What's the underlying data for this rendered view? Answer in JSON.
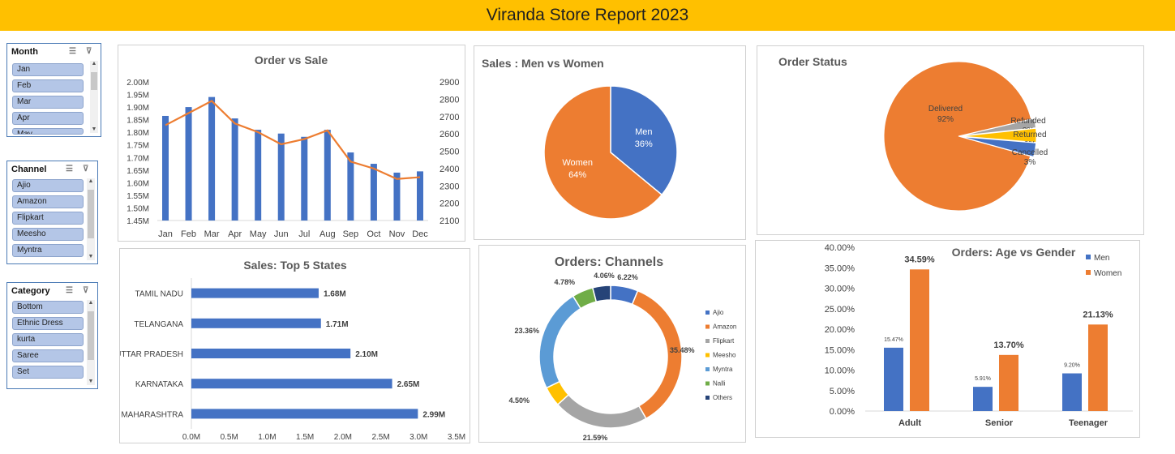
{
  "report_title": "Viranda Store Report 2023",
  "colors": {
    "blue": "#4472c4",
    "orange": "#ed7d31",
    "gray": "#a5a5a5",
    "yellow": "#ffc000",
    "lightblue": "#5b9bd5",
    "green": "#70ad47",
    "navy": "#264478",
    "banner": "#ffc000"
  },
  "slicers": {
    "month": {
      "title": "Month",
      "items": [
        "Jan",
        "Feb",
        "Mar",
        "Apr",
        "May"
      ]
    },
    "channel": {
      "title": "Channel",
      "items": [
        "Ajio",
        "Amazon",
        "Flipkart",
        "Meesho",
        "Myntra"
      ]
    },
    "category": {
      "title": "Category",
      "items": [
        "Bottom",
        "Ethnic Dress",
        "kurta",
        "Saree",
        "Set"
      ]
    }
  },
  "chart_data": [
    {
      "id": "order-vs-sale",
      "type": "bar",
      "title": "Order vs Sale",
      "categories": [
        "Jan",
        "Feb",
        "Mar",
        "Apr",
        "May",
        "Jun",
        "Jul",
        "Aug",
        "Sep",
        "Oct",
        "Nov",
        "Dec"
      ],
      "series": [
        {
          "values": [
            1.865,
            1.9,
            1.94,
            1.855,
            1.81,
            1.795,
            1.782,
            1.81,
            1.72,
            1.675,
            1.64,
            1.645
          ]
        },
        {
          "type": "line",
          "axis": "secondary",
          "values": [
            2650,
            2720,
            2790,
            2660,
            2610,
            2540,
            2570,
            2620,
            2440,
            2400,
            2340,
            2350
          ]
        }
      ],
      "ylim": [
        1.45,
        2.0
      ],
      "y_ticks": [
        "1.45M",
        "1.50M",
        "1.55M",
        "1.60M",
        "1.65M",
        "1.70M",
        "1.75M",
        "1.80M",
        "1.85M",
        "1.90M",
        "1.95M",
        "2.00M"
      ],
      "y2lim": [
        2100,
        2900
      ],
      "y2_ticks": [
        "2100",
        "2200",
        "2300",
        "2400",
        "2500",
        "2600",
        "2700",
        "2800",
        "2900"
      ]
    },
    {
      "id": "sales-men-women",
      "type": "pie",
      "title": "Sales : Men vs Women",
      "slices": [
        {
          "name": "Men",
          "value": 36,
          "label": "36%",
          "color": "#4472c4"
        },
        {
          "name": "Women",
          "value": 64,
          "label": "64%",
          "color": "#ed7d31"
        }
      ]
    },
    {
      "id": "order-status",
      "type": "pie",
      "title": "Order Status",
      "slices": [
        {
          "name": "Delivered",
          "value": 92,
          "label": "92%",
          "color": "#ed7d31"
        },
        {
          "name": "Refunded",
          "value": 2,
          "label": "2%",
          "color": "#a5a5a5"
        },
        {
          "name": "Returned",
          "value": 3,
          "label": "3%",
          "color": "#ffc000"
        },
        {
          "name": "Cancelled",
          "value": 3,
          "label": "3%",
          "color": "#4472c4"
        }
      ]
    },
    {
      "id": "top-states",
      "type": "bar",
      "orientation": "horizontal",
      "title": "Sales: Top 5 States",
      "categories": [
        "TAMIL NADU",
        "TELANGANA",
        "UTTAR PRADESH",
        "KARNATAKA",
        "MAHARASHTRA"
      ],
      "values": [
        1.68,
        1.71,
        2.1,
        2.65,
        2.99
      ],
      "data_labels": [
        "1.68M",
        "1.71M",
        "2.10M",
        "2.65M",
        "2.99M"
      ],
      "xlim": [
        0,
        3.5
      ],
      "x_ticks": [
        "0.0M",
        "0.5M",
        "1.0M",
        "1.5M",
        "2.0M",
        "2.5M",
        "3.0M",
        "3.5M"
      ]
    },
    {
      "id": "orders-channels",
      "type": "pie",
      "variant": "doughnut",
      "title": "Orders: Channels",
      "slices": [
        {
          "name": "Ajio",
          "value": 6.22,
          "label": "6.22%",
          "color": "#4472c4"
        },
        {
          "name": "Amazon",
          "value": 35.48,
          "label": "35.48%",
          "color": "#ed7d31"
        },
        {
          "name": "Flipkart",
          "value": 21.59,
          "label": "21.59%",
          "color": "#a5a5a5"
        },
        {
          "name": "Meesho",
          "value": 4.5,
          "label": "4.50%",
          "color": "#ffc000"
        },
        {
          "name": "Myntra",
          "value": 23.36,
          "label": "23.36%",
          "color": "#5b9bd5"
        },
        {
          "name": "Nalli",
          "value": 4.78,
          "label": "4.78%",
          "color": "#70ad47"
        },
        {
          "name": "Others",
          "value": 4.06,
          "label": "4.06%",
          "color": "#264478"
        }
      ],
      "legend": "right"
    },
    {
      "id": "age-vs-gender",
      "type": "bar",
      "title": "Orders: Age vs Gender",
      "categories": [
        "Adult",
        "Senior",
        "Teenager"
      ],
      "series": [
        {
          "name": "Men",
          "values": [
            15.47,
            5.91,
            9.2
          ],
          "labels": [
            "15.47%",
            "5.91%",
            "9.20%"
          ],
          "color": "#4472c4"
        },
        {
          "name": "Women",
          "values": [
            34.59,
            13.7,
            21.13
          ],
          "labels": [
            "34.59%",
            "13.70%",
            "21.13%"
          ],
          "color": "#ed7d31"
        }
      ],
      "ylim": [
        0,
        40
      ],
      "y_ticks": [
        "0.00%",
        "5.00%",
        "10.00%",
        "15.00%",
        "20.00%",
        "25.00%",
        "30.00%",
        "35.00%",
        "40.00%"
      ],
      "legend": "top-right"
    }
  ]
}
